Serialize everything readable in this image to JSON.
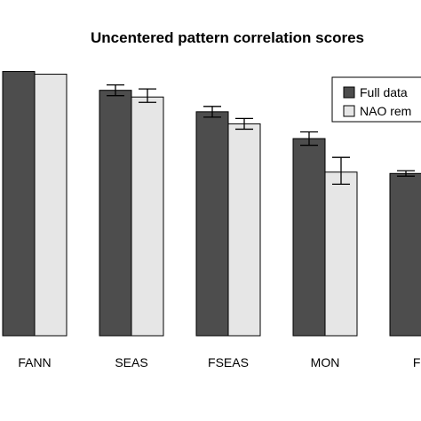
{
  "chart_data": {
    "type": "bar",
    "title": "Uncentered pattern correlation scores",
    "xlabel": "",
    "ylabel": "",
    "categories": [
      "FANN",
      "SEAS",
      "FSEAS",
      "MON",
      "FM"
    ],
    "ylim": [
      0,
      1
    ],
    "grid": false,
    "legend_position": "top-right",
    "series": [
      {
        "name": "Full data",
        "color": "#4d4d4d",
        "values": [
          0.985,
          0.915,
          0.835,
          0.735,
          0.605
        ],
        "err_low": [
          0.985,
          0.895,
          0.815,
          0.71,
          0.595
        ],
        "err_high": [
          0.985,
          0.935,
          0.855,
          0.76,
          0.615
        ]
      },
      {
        "name": "NAO rem",
        "color": "#e6e6e6",
        "values": [
          0.975,
          0.89,
          0.79,
          0.61,
          null
        ],
        "err_low": [
          0.975,
          0.87,
          0.77,
          0.565,
          null
        ],
        "err_high": [
          0.975,
          0.92,
          0.81,
          0.665,
          null
        ]
      }
    ]
  }
}
